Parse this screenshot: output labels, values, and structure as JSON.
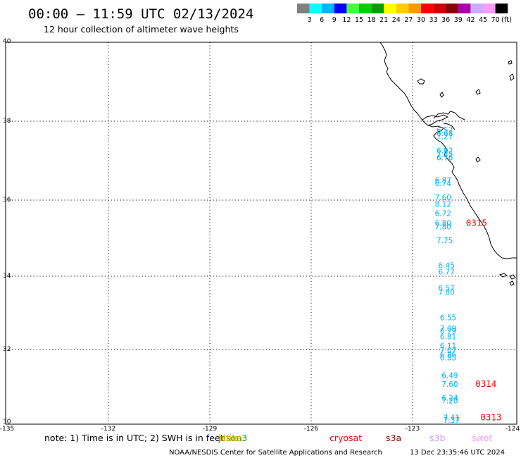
{
  "header": {
    "title": "00:00 – 11:59 UTC 02/13/2024",
    "subtitle": "12 hour collection of altimeter wave heights"
  },
  "legend": {
    "unit": "(ft)",
    "swatches": [
      {
        "color": "#808080",
        "label": "3"
      },
      {
        "color": "#00ffff",
        "label": "6"
      },
      {
        "color": "#00b4ff",
        "label": "9"
      },
      {
        "color": "#0000ff",
        "label": "12"
      },
      {
        "color": "#40ff40",
        "label": "15"
      },
      {
        "color": "#00d000",
        "label": "18"
      },
      {
        "color": "#00a000",
        "label": "21"
      },
      {
        "color": "#ffff00",
        "label": "24"
      },
      {
        "color": "#ffcc00",
        "label": "27"
      },
      {
        "color": "#ff9900",
        "label": "30"
      },
      {
        "color": "#ff0000",
        "label": "33"
      },
      {
        "color": "#cc0000",
        "label": "36"
      },
      {
        "color": "#880000",
        "label": "39"
      },
      {
        "color": "#aa00aa",
        "label": "42"
      },
      {
        "color": "#ccaaff",
        "label": "45"
      },
      {
        "color": "#ff99ff",
        "label": "70"
      },
      {
        "color": "#000000",
        "label": ""
      }
    ]
  },
  "axes": {
    "lat_labels": [
      "40",
      "38",
      "36",
      "34",
      "32",
      "30"
    ],
    "lon_labels": [
      "-135",
      "-132",
      "-129",
      "-126",
      "-123",
      "-124"
    ]
  },
  "wave_heights": [
    {
      "value": "6.57",
      "lat": 37.63,
      "lon": -122.25
    },
    {
      "value": "6.68",
      "lat": 37.55,
      "lon": -122.25
    },
    {
      "value": "7.27",
      "lat": 37.46,
      "lon": -122.25
    },
    {
      "value": "6.92",
      "lat": 37.09,
      "lon": -122.25
    },
    {
      "value": "7.25",
      "lat": 37.0,
      "lon": -122.25
    },
    {
      "value": "6.76",
      "lat": 36.91,
      "lon": -122.25
    },
    {
      "value": "6.87",
      "lat": 36.32,
      "lon": -122.3
    },
    {
      "value": "6.74",
      "lat": 36.24,
      "lon": -122.3
    },
    {
      "value": "7.60",
      "lat": 35.87,
      "lon": -122.3
    },
    {
      "value": "8.12",
      "lat": 35.69,
      "lon": -122.3
    },
    {
      "value": "6.72",
      "lat": 35.45,
      "lon": -122.3
    },
    {
      "value": "6.80",
      "lat": 35.19,
      "lon": -122.3
    },
    {
      "value": "7.80",
      "lat": 35.1,
      "lon": -122.3
    },
    {
      "value": "7.75",
      "lat": 34.74,
      "lon": -122.25
    },
    {
      "value": "6.45",
      "lat": 34.09,
      "lon": -122.2
    },
    {
      "value": "6.77",
      "lat": 33.92,
      "lon": -122.2
    },
    {
      "value": "6.57",
      "lat": 33.5,
      "lon": -122.2
    },
    {
      "value": "7.80",
      "lat": 33.39,
      "lon": -122.2
    },
    {
      "value": "6.55",
      "lat": 32.72,
      "lon": -122.15
    },
    {
      "value": "7.09",
      "lat": 32.44,
      "lon": -122.15
    },
    {
      "value": "6.79",
      "lat": 32.37,
      "lon": -122.15
    },
    {
      "value": "6.81",
      "lat": 32.22,
      "lon": -122.15
    },
    {
      "value": "6.11",
      "lat": 31.98,
      "lon": -122.15
    },
    {
      "value": "7.07",
      "lat": 31.86,
      "lon": -122.15
    },
    {
      "value": "6.86",
      "lat": 31.75,
      "lon": -122.15
    },
    {
      "value": "6.85",
      "lat": 31.67,
      "lon": -122.15
    },
    {
      "value": "6.49",
      "lat": 31.21,
      "lon": -122.1
    },
    {
      "value": "7.60",
      "lat": 30.98,
      "lon": -122.1
    },
    {
      "value": "6.24",
      "lat": 30.62,
      "lon": -122.1
    },
    {
      "value": "7.20",
      "lat": 30.54,
      "lon": -122.1
    },
    {
      "value": "7.41",
      "lat": 30.1,
      "lon": -122.05
    },
    {
      "value": "7.37",
      "lat": 30.04,
      "lon": -122.05
    }
  ],
  "pass_labels": [
    {
      "text": "0315",
      "lat": 35.19,
      "lon": -121.38
    },
    {
      "text": "0314",
      "lat": 30.98,
      "lon": -121.1
    },
    {
      "text": "0313",
      "lat": 30.1,
      "lon": -120.95
    }
  ],
  "footer": {
    "note": "note: 1) Time is in UTC; 2) SWH is in feet",
    "missions": [
      {
        "name": "jason3",
        "color": "#00aa00"
      },
      {
        "name": "altika",
        "color": "#ff9900"
      },
      {
        "name": "cryosat",
        "color": "#ff0000"
      },
      {
        "name": "s3a",
        "color": "#990000"
      },
      {
        "name": "s3b",
        "color": "#c8a0ff"
      },
      {
        "name": "swot",
        "color": "#ff99ff"
      }
    ],
    "credit": "NOAA/NESDIS Center for Satellite Applications and Research",
    "timestamp": "13 Dec 23:35:46 UTC 2024"
  },
  "colors": {
    "wave_text": "#00b4ff",
    "pass_text": "#ff0000",
    "grid": "#000000",
    "coast": "#000000"
  }
}
